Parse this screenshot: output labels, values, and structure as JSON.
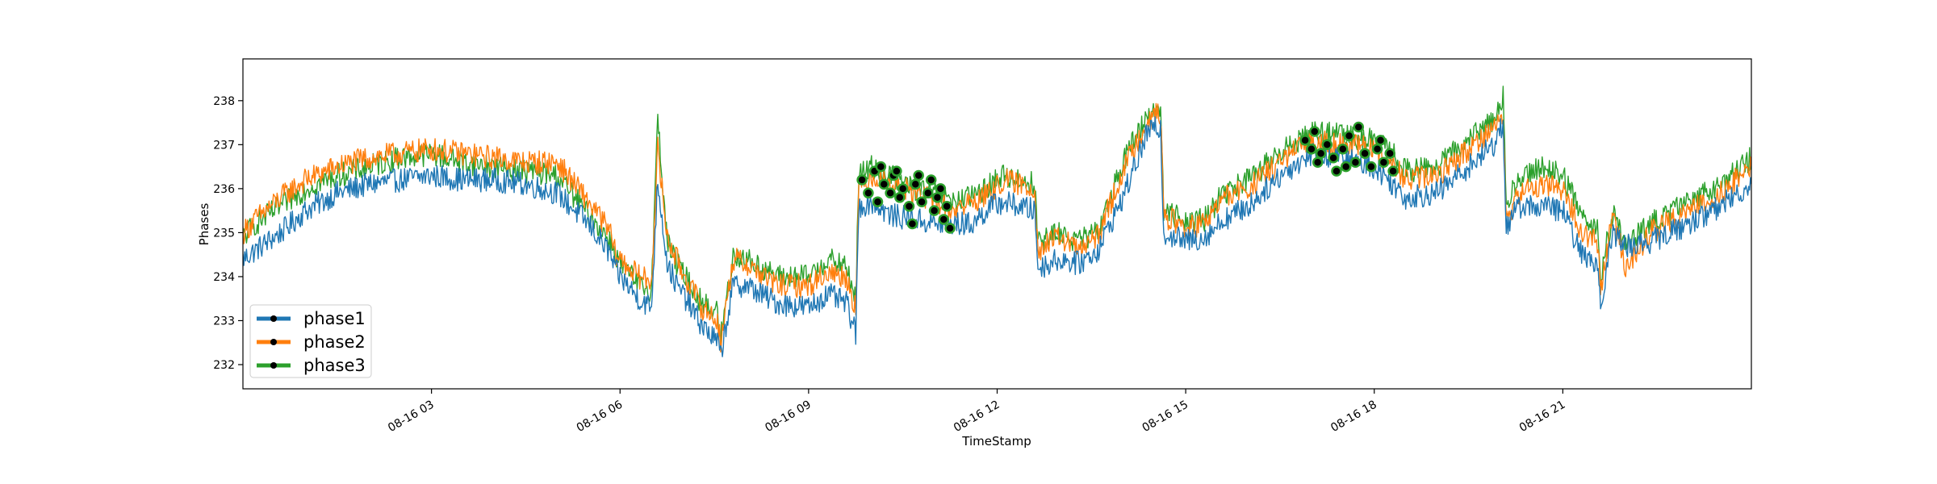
{
  "chart_data": {
    "type": "line",
    "title": "",
    "xlabel": "TimeStamp",
    "ylabel": "Phases",
    "xlim": [
      0.0,
      24.0
    ],
    "ylim": [
      231.45,
      238.95
    ],
    "xticks": [
      {
        "value": 3,
        "label": "08-16 03"
      },
      {
        "value": 6,
        "label": "08-16 06"
      },
      {
        "value": 9,
        "label": "08-16 09"
      },
      {
        "value": 12,
        "label": "08-16 12"
      },
      {
        "value": 15,
        "label": "08-16 15"
      },
      {
        "value": 18,
        "label": "08-16 18"
      },
      {
        "value": 21,
        "label": "08-16 21"
      }
    ],
    "yticks": [
      232,
      233,
      234,
      235,
      236,
      237,
      238
    ],
    "grid": false,
    "legend_position": "lower left",
    "series": [
      {
        "name": "phase1",
        "color": "#1f77b4",
        "x": [
          0.0,
          0.2,
          0.6,
          1.0,
          1.5,
          2.0,
          2.5,
          3.0,
          3.5,
          4.0,
          4.5,
          5.0,
          5.5,
          5.85,
          5.9,
          6.0,
          6.3,
          6.5,
          6.6,
          6.75,
          6.9,
          7.0,
          7.3,
          7.55,
          7.6,
          7.8,
          8.0,
          8.5,
          9.0,
          9.3,
          9.6,
          9.75,
          9.8,
          10.0,
          10.3,
          10.7,
          11.0,
          11.3,
          11.6,
          11.9,
          12.1,
          12.6,
          12.65,
          13.0,
          13.3,
          13.6,
          14.0,
          14.4,
          14.6,
          14.65,
          15.0,
          15.3,
          15.6,
          16.0,
          16.5,
          17.0,
          17.5,
          18.0,
          18.3,
          18.5,
          19.0,
          19.5,
          19.9,
          20.05,
          20.1,
          20.3,
          20.7,
          21.0,
          21.3,
          21.55,
          21.6,
          21.8,
          22.0,
          22.4,
          23.0,
          23.5,
          24.0
        ],
        "values": [
          234.4,
          234.6,
          235.0,
          235.5,
          235.9,
          236.1,
          236.2,
          236.3,
          236.2,
          236.2,
          236.1,
          235.9,
          235.2,
          234.5,
          234.2,
          234.0,
          233.5,
          233.3,
          236.2,
          234.3,
          233.8,
          233.6,
          232.9,
          232.5,
          232.2,
          233.8,
          233.8,
          233.4,
          233.3,
          233.6,
          233.4,
          232.7,
          235.6,
          235.7,
          235.4,
          235.3,
          235.2,
          235.2,
          235.2,
          235.6,
          235.7,
          235.5,
          234.2,
          234.4,
          234.3,
          234.6,
          235.8,
          237.3,
          237.4,
          235.0,
          234.8,
          234.9,
          235.3,
          235.6,
          236.3,
          236.8,
          236.7,
          236.5,
          236.1,
          235.8,
          235.9,
          236.5,
          237.0,
          237.5,
          235.1,
          235.6,
          235.6,
          235.5,
          234.5,
          234.3,
          233.4,
          235.0,
          234.7,
          234.8,
          235.2,
          235.6,
          236.1
        ]
      },
      {
        "name": "phase2",
        "color": "#ff7f0e",
        "x": [
          0.0,
          0.2,
          0.6,
          1.0,
          1.5,
          2.0,
          2.5,
          3.0,
          3.5,
          4.0,
          4.5,
          5.0,
          5.5,
          5.85,
          5.9,
          6.0,
          6.3,
          6.5,
          6.6,
          6.75,
          6.9,
          7.0,
          7.3,
          7.55,
          7.6,
          7.8,
          8.0,
          8.5,
          9.0,
          9.3,
          9.6,
          9.75,
          9.8,
          10.0,
          10.3,
          10.7,
          11.0,
          11.3,
          11.6,
          11.9,
          12.1,
          12.6,
          12.65,
          13.0,
          13.3,
          13.6,
          14.0,
          14.4,
          14.6,
          14.65,
          15.0,
          15.3,
          15.6,
          16.0,
          16.5,
          17.0,
          17.5,
          18.0,
          18.3,
          18.5,
          19.0,
          19.5,
          19.9,
          20.05,
          20.1,
          20.3,
          20.7,
          21.0,
          21.3,
          21.55,
          21.6,
          21.8,
          22.0,
          22.4,
          23.0,
          23.5,
          24.0
        ],
        "values": [
          235.0,
          235.3,
          235.8,
          236.2,
          236.5,
          236.7,
          236.8,
          236.9,
          236.8,
          236.7,
          236.6,
          236.6,
          235.7,
          235.0,
          234.6,
          234.4,
          234.0,
          233.9,
          236.9,
          234.9,
          234.4,
          234.1,
          233.3,
          233.0,
          232.5,
          234.4,
          234.3,
          233.8,
          233.8,
          234.1,
          234.0,
          233.3,
          236.0,
          236.3,
          236.1,
          235.9,
          235.7,
          235.5,
          235.7,
          235.9,
          236.2,
          236.0,
          234.6,
          234.9,
          234.6,
          234.9,
          236.4,
          237.6,
          237.7,
          235.4,
          235.1,
          235.2,
          235.8,
          236.0,
          236.6,
          237.1,
          237.0,
          236.9,
          236.5,
          236.2,
          236.3,
          236.9,
          237.4,
          237.7,
          235.2,
          235.9,
          236.1,
          236.0,
          235.0,
          234.8,
          233.7,
          235.4,
          234.2,
          235.0,
          235.5,
          235.9,
          236.5
        ]
      },
      {
        "name": "phase3",
        "color": "#2ca02c",
        "x": [
          0.0,
          0.2,
          0.6,
          1.0,
          1.5,
          2.0,
          2.5,
          3.0,
          3.5,
          4.0,
          4.5,
          5.0,
          5.5,
          5.85,
          5.9,
          6.0,
          6.3,
          6.5,
          6.6,
          6.75,
          6.9,
          7.0,
          7.3,
          7.55,
          7.6,
          7.8,
          8.0,
          8.5,
          9.0,
          9.3,
          9.6,
          9.75,
          9.8,
          10.0,
          10.3,
          10.7,
          11.0,
          11.3,
          11.6,
          11.9,
          12.1,
          12.6,
          12.65,
          13.0,
          13.3,
          13.6,
          14.0,
          14.4,
          14.6,
          14.65,
          15.0,
          15.3,
          15.6,
          16.0,
          16.5,
          17.0,
          17.5,
          18.0,
          18.3,
          18.5,
          19.0,
          19.5,
          19.9,
          20.05,
          20.1,
          20.3,
          20.7,
          21.0,
          21.3,
          21.55,
          21.6,
          21.8,
          22.0,
          22.4,
          23.0,
          23.5,
          24.0
        ],
        "values": [
          234.9,
          235.2,
          235.6,
          236.0,
          236.3,
          236.5,
          236.7,
          236.8,
          236.6,
          236.5,
          236.4,
          236.3,
          235.4,
          234.8,
          234.6,
          234.3,
          233.8,
          233.7,
          237.6,
          234.8,
          234.3,
          234.1,
          233.4,
          233.2,
          232.6,
          234.5,
          234.4,
          234.0,
          234.0,
          234.4,
          234.2,
          233.5,
          236.3,
          236.5,
          236.3,
          236.0,
          235.9,
          235.7,
          235.8,
          236.1,
          236.3,
          236.1,
          234.8,
          235.0,
          234.8,
          235.0,
          236.6,
          237.7,
          237.9,
          235.5,
          235.3,
          235.3,
          235.9,
          236.2,
          236.8,
          237.3,
          237.2,
          237.1,
          236.8,
          236.4,
          236.5,
          237.1,
          237.6,
          238.1,
          235.6,
          236.3,
          236.5,
          236.3,
          235.4,
          235.1,
          234.0,
          235.5,
          234.7,
          235.2,
          235.7,
          236.1,
          236.7
        ]
      }
    ],
    "highlighted_points": [
      {
        "x": 9.85,
        "y": 236.2
      },
      {
        "x": 9.95,
        "y": 235.9
      },
      {
        "x": 10.05,
        "y": 236.4
      },
      {
        "x": 10.1,
        "y": 235.7
      },
      {
        "x": 10.2,
        "y": 236.1
      },
      {
        "x": 10.3,
        "y": 235.9
      },
      {
        "x": 10.35,
        "y": 236.3
      },
      {
        "x": 10.45,
        "y": 235.8
      },
      {
        "x": 10.5,
        "y": 236.0
      },
      {
        "x": 10.6,
        "y": 235.6
      },
      {
        "x": 10.65,
        "y": 235.2
      },
      {
        "x": 10.7,
        "y": 236.1
      },
      {
        "x": 10.8,
        "y": 235.7
      },
      {
        "x": 10.9,
        "y": 235.9
      },
      {
        "x": 11.0,
        "y": 235.5
      },
      {
        "x": 11.05,
        "y": 235.8
      },
      {
        "x": 11.15,
        "y": 235.3
      },
      {
        "x": 11.2,
        "y": 235.6
      },
      {
        "x": 11.25,
        "y": 235.1
      },
      {
        "x": 10.15,
        "y": 236.5
      },
      {
        "x": 10.4,
        "y": 236.4
      },
      {
        "x": 10.75,
        "y": 236.3
      },
      {
        "x": 10.95,
        "y": 236.2
      },
      {
        "x": 11.1,
        "y": 236.0
      },
      {
        "x": 16.9,
        "y": 237.1
      },
      {
        "x": 17.0,
        "y": 236.9
      },
      {
        "x": 17.05,
        "y": 237.3
      },
      {
        "x": 17.15,
        "y": 236.8
      },
      {
        "x": 17.25,
        "y": 237.0
      },
      {
        "x": 17.35,
        "y": 236.7
      },
      {
        "x": 17.4,
        "y": 236.4
      },
      {
        "x": 17.5,
        "y": 236.9
      },
      {
        "x": 17.6,
        "y": 237.2
      },
      {
        "x": 17.7,
        "y": 236.6
      },
      {
        "x": 17.75,
        "y": 237.4
      },
      {
        "x": 17.85,
        "y": 236.8
      },
      {
        "x": 17.95,
        "y": 236.5
      },
      {
        "x": 18.05,
        "y": 236.9
      },
      {
        "x": 18.15,
        "y": 236.6
      },
      {
        "x": 18.25,
        "y": 236.8
      },
      {
        "x": 18.3,
        "y": 236.4
      },
      {
        "x": 17.1,
        "y": 236.6
      },
      {
        "x": 17.55,
        "y": 236.5
      },
      {
        "x": 18.1,
        "y": 237.1
      }
    ]
  }
}
